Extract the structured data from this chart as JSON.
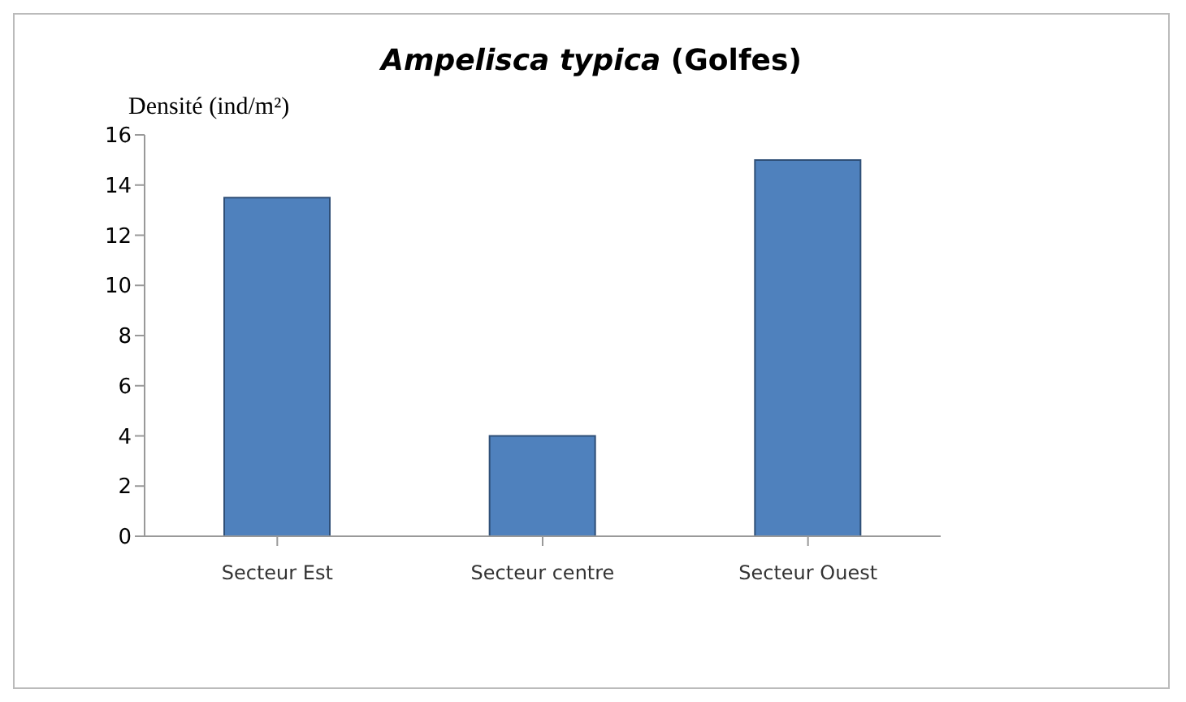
{
  "chart_data": {
    "type": "bar",
    "title": "Ampelisca typica (Golfes)",
    "ylabel": "Densité (ind/m²)",
    "categories": [
      "Secteur Est",
      "Secteur centre",
      "Secteur Ouest"
    ],
    "values": [
      13.5,
      4,
      15
    ],
    "color": "#4f81bd",
    "ylim": [
      0,
      16
    ],
    "yticks": [
      0,
      2,
      4,
      6,
      8,
      10,
      12,
      14,
      16
    ],
    "grid": false,
    "legend": false
  }
}
